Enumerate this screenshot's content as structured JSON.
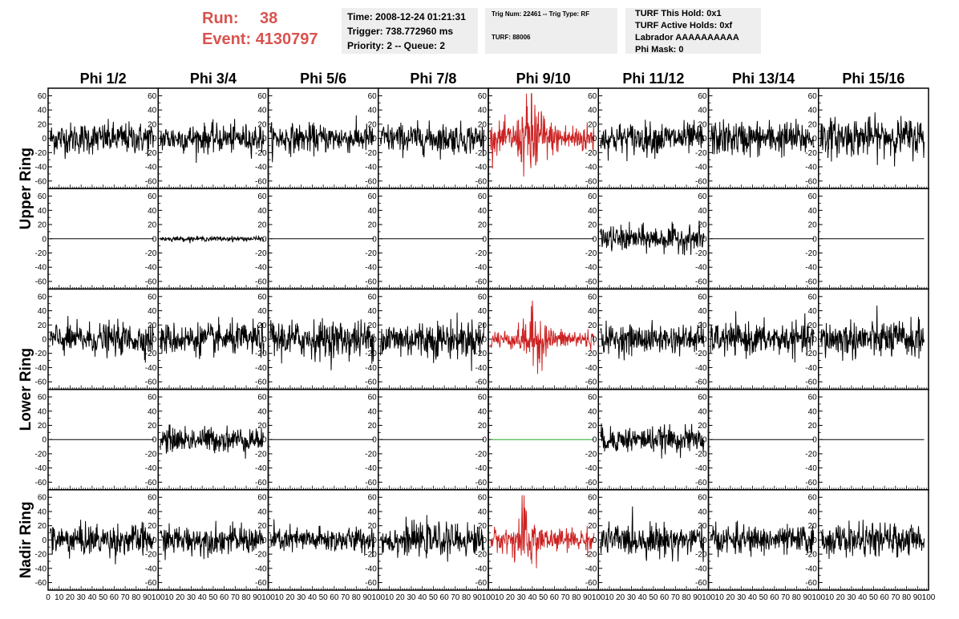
{
  "header": {
    "run_label": "Run:",
    "run_value": "38",
    "event_label": "Event:",
    "event_value": "4130797",
    "box1": [
      "Time: 2008-12-24 01:21:31",
      "Trigger: 738.772960 ms",
      "Priority: 2 -- Queue: 2"
    ],
    "box2": [
      "Trig Num: 22461 -- Trig Type: RF",
      "TURF: 88006"
    ],
    "box3": [
      "TURF This Hold: 0x1",
      "TURF Active Holds: 0xf",
      "Labrador AAAAAAAAAA",
      "Phi Mask: 0"
    ]
  },
  "colors": {
    "header_text": "#d9534f",
    "info_bg": "#eeeeee",
    "trace_normal": "#000000",
    "trace_triggered": "#cc2222",
    "trace_flat_green": "#22aa22"
  },
  "chart_data": {
    "type": "line",
    "columns": [
      "Phi 1/2",
      "Phi 3/4",
      "Phi 5/6",
      "Phi 7/8",
      "Phi 9/10",
      "Phi 11/12",
      "Phi 13/14",
      "Phi 15/16"
    ],
    "rows": [
      "Upper Ring",
      "",
      "Lower Ring",
      "",
      "Nadir Ring"
    ],
    "row_labels": [
      {
        "text": "Upper Ring",
        "spans_rows": [
          0,
          1
        ]
      },
      {
        "text": "Lower Ring",
        "spans_rows": [
          2,
          3
        ]
      },
      {
        "text": "Nadir Ring",
        "spans_rows": [
          4,
          4
        ]
      }
    ],
    "xlim": [
      0,
      100
    ],
    "ylim": [
      -65,
      65
    ],
    "yticks": [
      -60,
      -40,
      -20,
      0,
      20,
      40,
      60
    ],
    "xticks": [
      0,
      10,
      20,
      30,
      40,
      50,
      60,
      70,
      80,
      90,
      100
    ],
    "panels": [
      [
        {
          "amp": 20,
          "color": "normal"
        },
        {
          "amp": 18,
          "color": "normal"
        },
        {
          "amp": 18,
          "color": "normal"
        },
        {
          "amp": 19,
          "color": "normal"
        },
        {
          "amp": 35,
          "color": "triggered",
          "burst": 40
        },
        {
          "amp": 20,
          "color": "normal"
        },
        {
          "amp": 22,
          "color": "normal"
        },
        {
          "amp": 24,
          "color": "normal",
          "offset": 2
        }
      ],
      [
        {
          "amp": 0,
          "color": "normal"
        },
        {
          "amp": 3,
          "color": "normal"
        },
        {
          "amp": 0,
          "color": "normal"
        },
        {
          "amp": 0,
          "color": "normal"
        },
        {
          "amp": 0,
          "color": "normal"
        },
        {
          "amp": 16,
          "color": "normal"
        },
        {
          "amp": 0,
          "color": "normal"
        },
        {
          "amp": 0,
          "color": "normal"
        }
      ],
      [
        {
          "amp": 20,
          "color": "normal"
        },
        {
          "amp": 20,
          "color": "normal"
        },
        {
          "amp": 24,
          "color": "normal"
        },
        {
          "amp": 24,
          "color": "normal"
        },
        {
          "amp": 22,
          "color": "triggered",
          "burst": 42
        },
        {
          "amp": 18,
          "color": "normal"
        },
        {
          "amp": 20,
          "color": "normal"
        },
        {
          "amp": 24,
          "color": "normal"
        }
      ],
      [
        {
          "amp": 0,
          "color": "normal"
        },
        {
          "amp": 16,
          "color": "normal"
        },
        {
          "amp": 0,
          "color": "normal"
        },
        {
          "amp": 0,
          "color": "normal"
        },
        {
          "amp": 0,
          "color": "flat_green"
        },
        {
          "amp": 16,
          "color": "normal"
        },
        {
          "amp": 0,
          "color": "normal"
        },
        {
          "amp": 0,
          "color": "normal"
        }
      ],
      [
        {
          "amp": 20,
          "color": "normal"
        },
        {
          "amp": 18,
          "color": "normal"
        },
        {
          "amp": 16,
          "color": "normal"
        },
        {
          "amp": 20,
          "color": "normal"
        },
        {
          "amp": 26,
          "color": "triggered",
          "burst": 35
        },
        {
          "amp": 20,
          "color": "normal"
        },
        {
          "amp": 18,
          "color": "normal"
        },
        {
          "amp": 20,
          "color": "normal"
        }
      ]
    ]
  }
}
